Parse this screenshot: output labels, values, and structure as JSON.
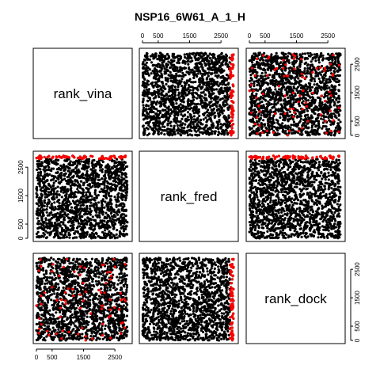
{
  "chart_data": {
    "type": "scatter",
    "title": "NSP16_6W61_A_1_H",
    "variables": [
      "rank_vina",
      "rank_fred",
      "rank_dock"
    ],
    "axis_range": [
      0,
      2950
    ],
    "ticks": [
      0,
      500,
      1500,
      2500
    ],
    "point_count": 1700,
    "colors": {
      "points": "#000000",
      "highlight": "#ff0000"
    },
    "panels": [
      {
        "row": 0,
        "col": 1,
        "x": "rank_fred",
        "y": "rank_vina"
      },
      {
        "row": 0,
        "col": 2,
        "x": "rank_dock",
        "y": "rank_vina"
      },
      {
        "row": 1,
        "col": 0,
        "x": "rank_vina",
        "y": "rank_fred"
      },
      {
        "row": 1,
        "col": 2,
        "x": "rank_dock",
        "y": "rank_fred"
      },
      {
        "row": 2,
        "col": 0,
        "x": "rank_vina",
        "y": "rank_dock"
      },
      {
        "row": 2,
        "col": 1,
        "x": "rank_fred",
        "y": "rank_dock"
      }
    ],
    "tick_axes": {
      "top": [
        1,
        2
      ],
      "bottom": [
        0
      ],
      "left": [
        1
      ],
      "right": [
        0,
        2
      ]
    },
    "grid": false,
    "legend": "none"
  }
}
